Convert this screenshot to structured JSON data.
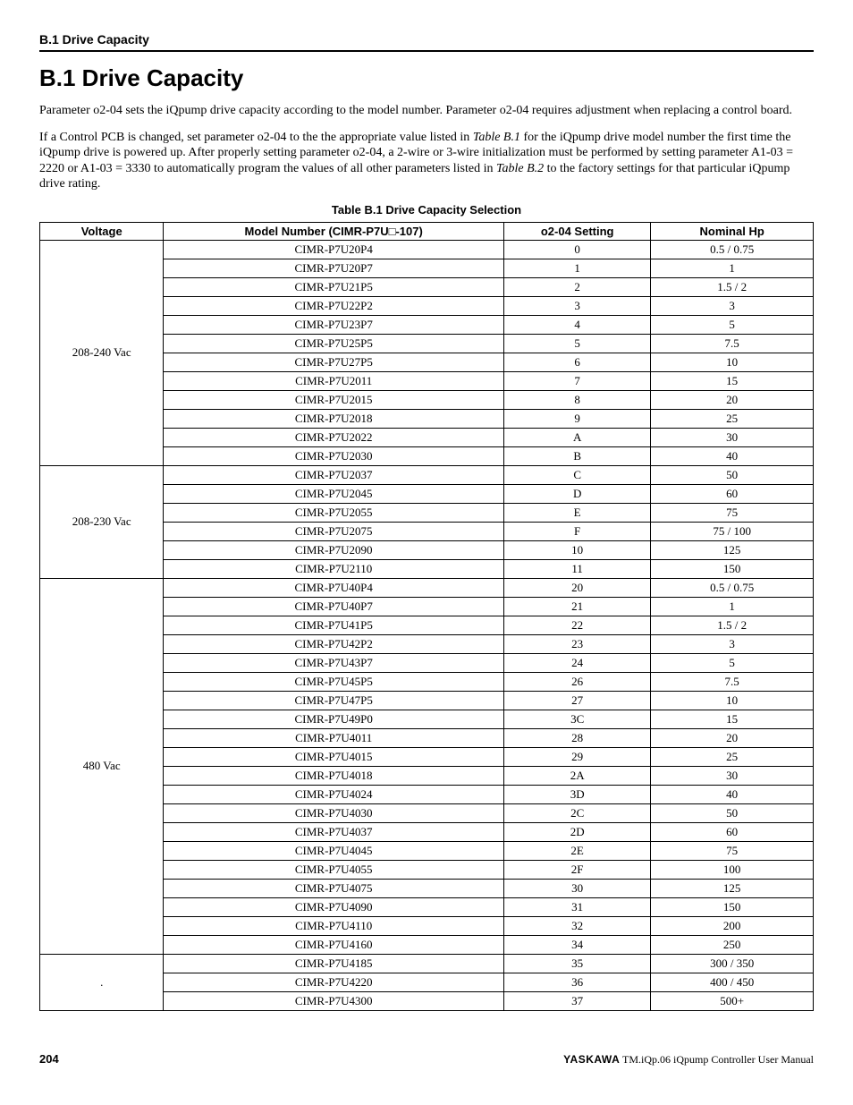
{
  "running_head": "B.1  Drive Capacity",
  "section_title": "B.1   Drive Capacity",
  "paragraphs": {
    "p1": "Parameter o2-04 sets the iQpump drive capacity according to the model number. Parameter o2-04 requires adjustment when replacing a control board.",
    "p2a": "If a Control PCB is changed, set parameter o2-04 to the the appropriate value listed in ",
    "p2_ref1": "Table B.1",
    "p2b": " for the iQpump drive model number the first time the iQpump drive is powered up. After properly setting parameter o2-04, a 2-wire or 3-wire initialization must be performed by setting parameter A1-03 = 2220 or A1-03 = 3330 to automatically program the values of all other parameters listed in ",
    "p2_ref2": "Table B.2",
    "p2c": " to the factory settings for that particular iQpump drive rating."
  },
  "table": {
    "caption": "Table B.1  Drive Capacity Selection",
    "columns": [
      "Voltage",
      "Model Number (CIMR-P7U□-107)",
      "o2-04 Setting",
      "Nominal Hp"
    ],
    "col_widths": [
      "16%",
      "44%",
      "19%",
      "21%"
    ],
    "groups": [
      {
        "voltage": "208-240 Vac",
        "rows": [
          [
            "CIMR-P7U20P4",
            "0",
            "0.5 / 0.75"
          ],
          [
            "CIMR-P7U20P7",
            "1",
            "1"
          ],
          [
            "CIMR-P7U21P5",
            "2",
            "1.5 / 2"
          ],
          [
            "CIMR-P7U22P2",
            "3",
            "3"
          ],
          [
            "CIMR-P7U23P7",
            "4",
            "5"
          ],
          [
            "CIMR-P7U25P5",
            "5",
            "7.5"
          ],
          [
            "CIMR-P7U27P5",
            "6",
            "10"
          ],
          [
            "CIMR-P7U2011",
            "7",
            "15"
          ],
          [
            "CIMR-P7U2015",
            "8",
            "20"
          ],
          [
            "CIMR-P7U2018",
            "9",
            "25"
          ],
          [
            "CIMR-P7U2022",
            "A",
            "30"
          ],
          [
            "CIMR-P7U2030",
            "B",
            "40"
          ]
        ]
      },
      {
        "voltage": "208-230 Vac",
        "rows": [
          [
            "CIMR-P7U2037",
            "C",
            "50"
          ],
          [
            "CIMR-P7U2045",
            "D",
            "60"
          ],
          [
            "CIMR-P7U2055",
            "E",
            "75"
          ],
          [
            "CIMR-P7U2075",
            "F",
            "75 / 100"
          ],
          [
            "CIMR-P7U2090",
            "10",
            "125"
          ],
          [
            "CIMR-P7U2110",
            "11",
            "150"
          ]
        ]
      },
      {
        "voltage": "480 Vac",
        "rows": [
          [
            "CIMR-P7U40P4",
            "20",
            "0.5 / 0.75"
          ],
          [
            "CIMR-P7U40P7",
            "21",
            "1"
          ],
          [
            "CIMR-P7U41P5",
            "22",
            "1.5 / 2"
          ],
          [
            "CIMR-P7U42P2",
            "23",
            "3"
          ],
          [
            "CIMR-P7U43P7",
            "24",
            "5"
          ],
          [
            "CIMR-P7U45P5",
            "26",
            "7.5"
          ],
          [
            "CIMR-P7U47P5",
            "27",
            "10"
          ],
          [
            "CIMR-P7U49P0",
            "3C",
            "15"
          ],
          [
            "CIMR-P7U4011",
            "28",
            "20"
          ],
          [
            "CIMR-P7U4015",
            "29",
            "25"
          ],
          [
            "CIMR-P7U4018",
            "2A",
            "30"
          ],
          [
            "CIMR-P7U4024",
            "3D",
            "40"
          ],
          [
            "CIMR-P7U4030",
            "2C",
            "50"
          ],
          [
            "CIMR-P7U4037",
            "2D",
            "60"
          ],
          [
            "CIMR-P7U4045",
            "2E",
            "75"
          ],
          [
            "CIMR-P7U4055",
            "2F",
            "100"
          ],
          [
            "CIMR-P7U4075",
            "30",
            "125"
          ],
          [
            "CIMR-P7U4090",
            "31",
            "150"
          ],
          [
            "CIMR-P7U4110",
            "32",
            "200"
          ],
          [
            "CIMR-P7U4160",
            "34",
            "250"
          ],
          [
            "CIMR-P7U4185",
            "35",
            "300 / 350"
          ],
          [
            "CIMR-P7U4220",
            "36",
            "400 / 450"
          ],
          [
            "CIMR-P7U4300",
            "37",
            "500+"
          ]
        ]
      }
    ],
    "voltage_split": {
      "group_index": 2,
      "split_at": 20,
      "second_label": "."
    }
  },
  "footer": {
    "page": "204",
    "brand": "YASKAWA",
    "doc": " TM.iQp.06 iQpump Controller User Manual"
  }
}
